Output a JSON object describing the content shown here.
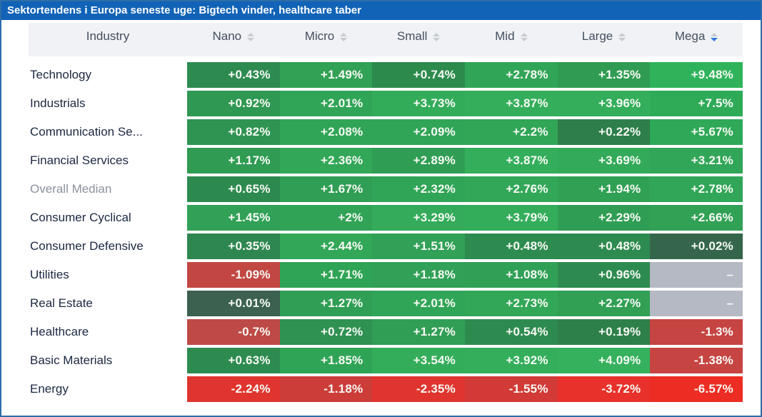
{
  "title_bar": {
    "text": "Sektortendens i Europa seneste uge: Bigtech vinder, healthcare taber",
    "bg": "#1163B7",
    "fg": "#FFFFFF"
  },
  "colors": {
    "frame_border": "#2E6DA9",
    "header_bg": "#F0F2F5",
    "header_text": "#454E5F",
    "row_label_text": "#1C2742",
    "muted_row_label_text": "#8A919E",
    "cell_text": "#F7FAF5",
    "missing_cell_bg": "#B4B9C3",
    "sort_icon_gray": "#C7CBD2",
    "sort_icon_active_blue": "#3279DD"
  },
  "table": {
    "header": {
      "industry_label": "Industry",
      "columns": [
        {
          "label": "Nano",
          "sort": "none"
        },
        {
          "label": "Micro",
          "sort": "none"
        },
        {
          "label": "Small",
          "sort": "none"
        },
        {
          "label": "Mid",
          "sort": "none"
        },
        {
          "label": "Large",
          "sort": "none"
        },
        {
          "label": "Mega",
          "sort": "desc"
        }
      ]
    },
    "rows": [
      {
        "industry": "Technology",
        "muted": false,
        "cells": [
          {
            "text": "+0.43%",
            "bg": "#2E8B50"
          },
          {
            "text": "+1.49%",
            "bg": "#31A155"
          },
          {
            "text": "+0.74%",
            "bg": "#2C8A4D"
          },
          {
            "text": "+2.78%",
            "bg": "#31A557"
          },
          {
            "text": "+1.35%",
            "bg": "#309C53"
          },
          {
            "text": "+9.48%",
            "bg": "#2FB35A"
          }
        ]
      },
      {
        "industry": "Industrials",
        "muted": false,
        "cells": [
          {
            "text": "+0.92%",
            "bg": "#2F9852"
          },
          {
            "text": "+2.01%",
            "bg": "#31A557"
          },
          {
            "text": "+3.73%",
            "bg": "#33AC5A"
          },
          {
            "text": "+3.87%",
            "bg": "#34AE5B"
          },
          {
            "text": "+3.96%",
            "bg": "#34AE5B"
          },
          {
            "text": "+7.5%",
            "bg": "#2FAB58"
          }
        ]
      },
      {
        "industry": "Communication Se...",
        "muted": false,
        "cells": [
          {
            "text": "+0.82%",
            "bg": "#2F9452"
          },
          {
            "text": "+2.08%",
            "bg": "#31A557"
          },
          {
            "text": "+2.09%",
            "bg": "#31A557"
          },
          {
            "text": "+2.2%",
            "bg": "#31A657"
          },
          {
            "text": "+0.22%",
            "bg": "#2D7E4A"
          },
          {
            "text": "+5.67%",
            "bg": "#2FA957"
          }
        ]
      },
      {
        "industry": "Financial Services",
        "muted": false,
        "cells": [
          {
            "text": "+1.17%",
            "bg": "#309B53"
          },
          {
            "text": "+2.36%",
            "bg": "#32A758"
          },
          {
            "text": "+2.89%",
            "bg": "#2F9E54"
          },
          {
            "text": "+3.87%",
            "bg": "#34AE5B"
          },
          {
            "text": "+3.69%",
            "bg": "#33AA59"
          },
          {
            "text": "+3.21%",
            "bg": "#32A658"
          }
        ]
      },
      {
        "industry": "Overall Median",
        "muted": true,
        "cells": [
          {
            "text": "+0.65%",
            "bg": "#2D8A4F"
          },
          {
            "text": "+1.67%",
            "bg": "#309E55"
          },
          {
            "text": "+2.32%",
            "bg": "#31A557"
          },
          {
            "text": "+2.76%",
            "bg": "#32A758"
          },
          {
            "text": "+1.94%",
            "bg": "#30A055"
          },
          {
            "text": "+2.78%",
            "bg": "#32A658"
          }
        ]
      },
      {
        "industry": "Consumer Cyclical",
        "muted": false,
        "cells": [
          {
            "text": "+1.45%",
            "bg": "#30A156"
          },
          {
            "text": "+2%",
            "bg": "#31A356"
          },
          {
            "text": "+3.29%",
            "bg": "#33AB5A"
          },
          {
            "text": "+3.79%",
            "bg": "#34AD5B"
          },
          {
            "text": "+2.29%",
            "bg": "#2F9E54"
          },
          {
            "text": "+2.66%",
            "bg": "#31A155"
          }
        ]
      },
      {
        "industry": "Consumer Defensive",
        "muted": false,
        "cells": [
          {
            "text": "+0.35%",
            "bg": "#2E8750"
          },
          {
            "text": "+2.44%",
            "bg": "#32A758"
          },
          {
            "text": "+1.51%",
            "bg": "#30A156"
          },
          {
            "text": "+0.48%",
            "bg": "#2E8B50"
          },
          {
            "text": "+0.48%",
            "bg": "#2E8B50"
          },
          {
            "text": "+0.02%",
            "bg": "#35664B"
          }
        ]
      },
      {
        "industry": "Utilities",
        "muted": false,
        "cells": [
          {
            "text": "-1.09%",
            "bg": "#C24743"
          },
          {
            "text": "+1.71%",
            "bg": "#30A456"
          },
          {
            "text": "+1.18%",
            "bg": "#30A156"
          },
          {
            "text": "+1.08%",
            "bg": "#30A056"
          },
          {
            "text": "+0.96%",
            "bg": "#2E8B50"
          },
          {
            "text": "–",
            "bg": "#B4B9C3"
          }
        ]
      },
      {
        "industry": "Real Estate",
        "muted": false,
        "cells": [
          {
            "text": "+0.01%",
            "bg": "#3C6150"
          },
          {
            "text": "+1.27%",
            "bg": "#309E55"
          },
          {
            "text": "+2.01%",
            "bg": "#31A557"
          },
          {
            "text": "+2.73%",
            "bg": "#32A758"
          },
          {
            "text": "+2.27%",
            "bg": "#31A055"
          },
          {
            "text": "–",
            "bg": "#B4B9C3"
          }
        ]
      },
      {
        "industry": "Healthcare",
        "muted": false,
        "cells": [
          {
            "text": "-0.7%",
            "bg": "#BD4A46"
          },
          {
            "text": "+0.72%",
            "bg": "#2F9152"
          },
          {
            "text": "+1.27%",
            "bg": "#309E55"
          },
          {
            "text": "+0.54%",
            "bg": "#2E8B50"
          },
          {
            "text": "+0.19%",
            "bg": "#2E8049"
          },
          {
            "text": "-1.3%",
            "bg": "#C64442"
          }
        ]
      },
      {
        "industry": "Basic Materials",
        "muted": false,
        "cells": [
          {
            "text": "+0.63%",
            "bg": "#2E8B50"
          },
          {
            "text": "+1.85%",
            "bg": "#30A456"
          },
          {
            "text": "+3.54%",
            "bg": "#34AD5A"
          },
          {
            "text": "+3.92%",
            "bg": "#34AE5B"
          },
          {
            "text": "+4.09%",
            "bg": "#35B15D"
          },
          {
            "text": "-1.38%",
            "bg": "#C64442"
          }
        ]
      },
      {
        "industry": "Energy",
        "muted": false,
        "cells": [
          {
            "text": "-2.24%",
            "bg": "#E0352F"
          },
          {
            "text": "-1.18%",
            "bg": "#CC3D3A"
          },
          {
            "text": "-2.35%",
            "bg": "#E0352F"
          },
          {
            "text": "-1.55%",
            "bg": "#D13A36"
          },
          {
            "text": "-3.72%",
            "bg": "#E8312A"
          },
          {
            "text": "-6.57%",
            "bg": "#ED2D24"
          }
        ]
      }
    ]
  },
  "chart_data": {
    "type": "heatmap",
    "title": "Sektortendens i Europa seneste uge: Bigtech vinder, healthcare taber",
    "columns": [
      "Nano",
      "Micro",
      "Small",
      "Mid",
      "Large",
      "Mega"
    ],
    "rows": [
      "Technology",
      "Industrials",
      "Communication Se...",
      "Financial Services",
      "Overall Median",
      "Consumer Cyclical",
      "Consumer Defensive",
      "Utilities",
      "Real Estate",
      "Healthcare",
      "Basic Materials",
      "Energy"
    ],
    "values_pct": [
      [
        0.43,
        1.49,
        0.74,
        2.78,
        1.35,
        9.48
      ],
      [
        0.92,
        2.01,
        3.73,
        3.87,
        3.96,
        7.5
      ],
      [
        0.82,
        2.08,
        2.09,
        2.2,
        0.22,
        5.67
      ],
      [
        1.17,
        2.36,
        2.89,
        3.87,
        3.69,
        3.21
      ],
      [
        0.65,
        1.67,
        2.32,
        2.76,
        1.94,
        2.78
      ],
      [
        1.45,
        2.0,
        3.29,
        3.79,
        2.29,
        2.66
      ],
      [
        0.35,
        2.44,
        1.51,
        0.48,
        0.48,
        0.02
      ],
      [
        -1.09,
        1.71,
        1.18,
        1.08,
        0.96,
        null
      ],
      [
        0.01,
        1.27,
        2.01,
        2.73,
        2.27,
        null
      ],
      [
        -0.7,
        0.72,
        1.27,
        0.54,
        0.19,
        -1.3
      ],
      [
        0.63,
        1.85,
        3.54,
        3.92,
        4.09,
        -1.38
      ],
      [
        -2.24,
        -1.18,
        -2.35,
        -1.55,
        -3.72,
        -6.57
      ]
    ],
    "legend_position": "none",
    "sorted_by": "Mega descending"
  }
}
